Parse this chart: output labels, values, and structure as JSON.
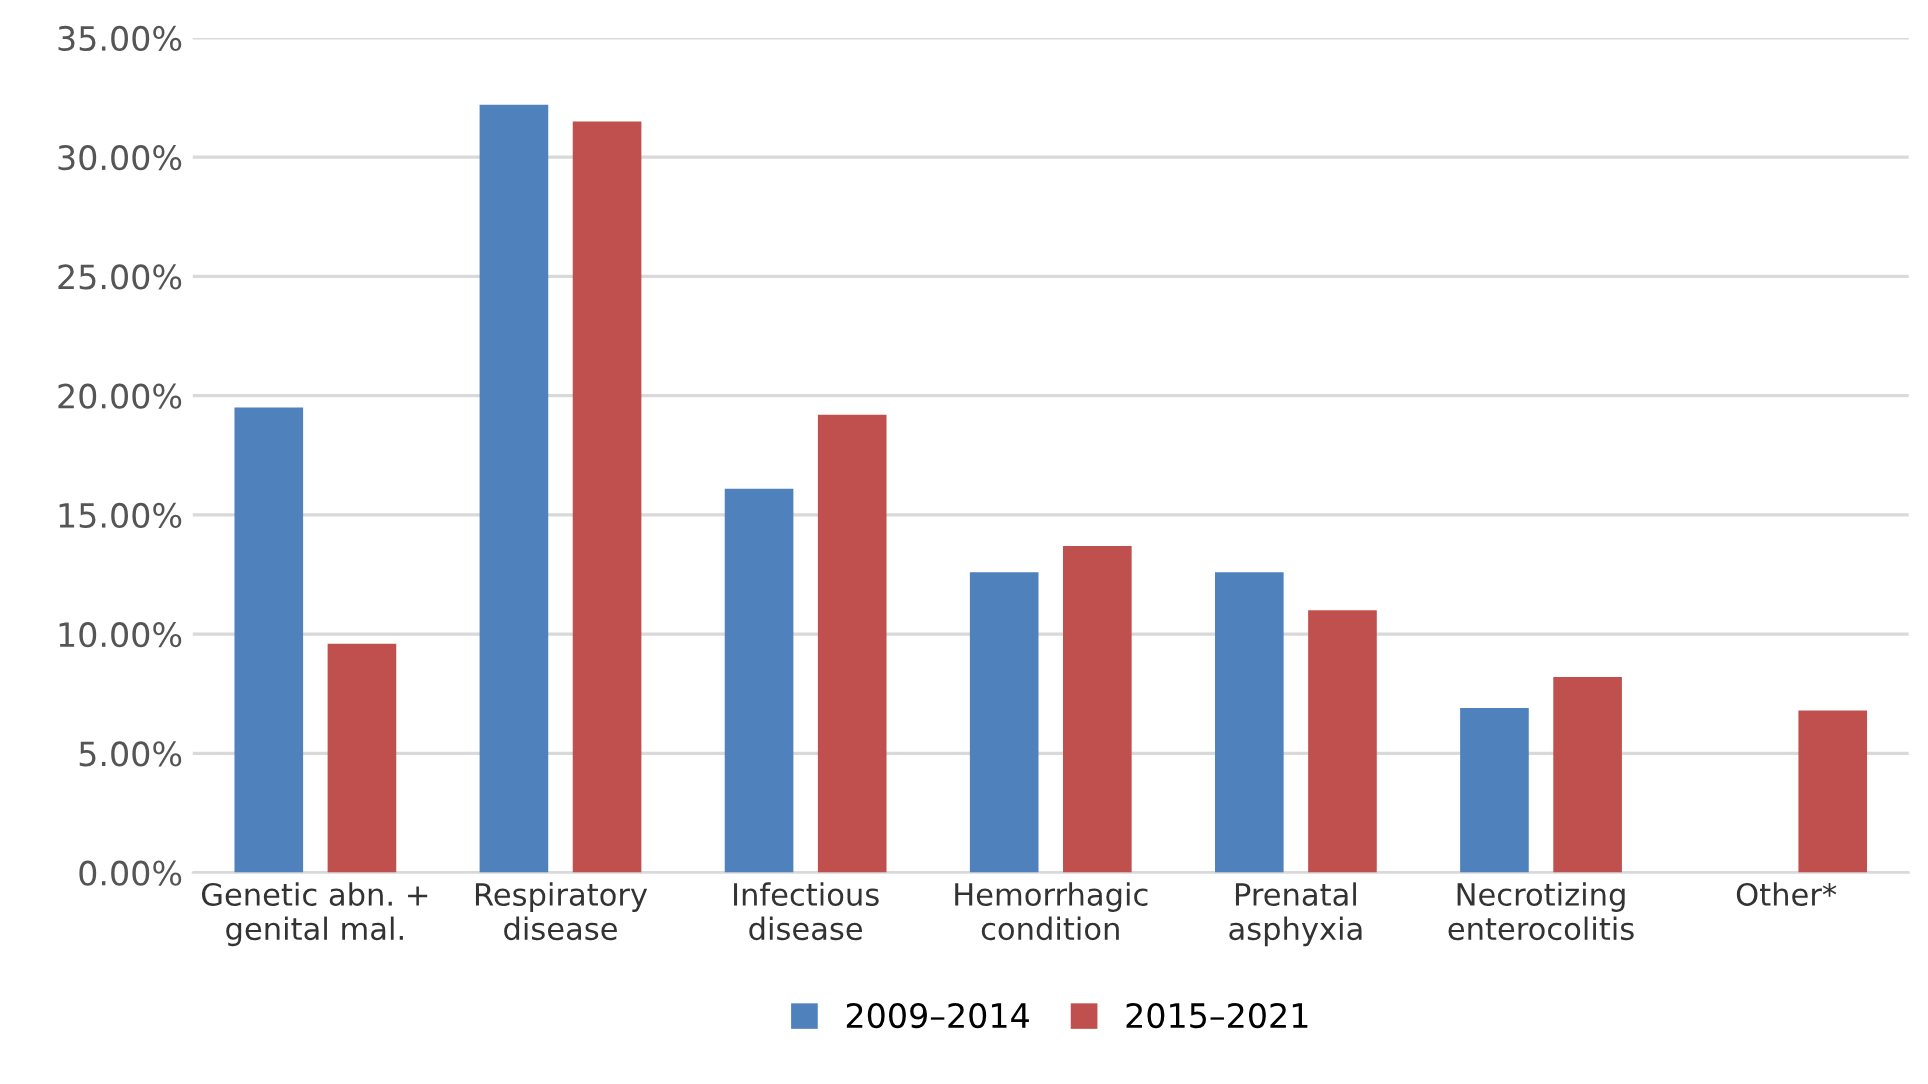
{
  "chart_data": {
    "type": "bar",
    "categories": [
      "Genetic abn. +\ngenital mal.",
      "Respiratory\ndisease",
      "Infectious\ndisease",
      "Hemorrhagic\ncondition",
      "Prenatal\nasphyxia",
      "Necrotizing\nenterocolitis",
      "Other*"
    ],
    "series": [
      {
        "name": "2009–2014",
        "color": "#4f81bd",
        "values": [
          19.5,
          32.2,
          16.1,
          12.6,
          12.6,
          6.9,
          null
        ]
      },
      {
        "name": "2015–2021",
        "color": "#c0504d",
        "values": [
          9.6,
          31.5,
          19.2,
          13.7,
          11.0,
          8.2,
          6.8
        ]
      }
    ],
    "ylim": [
      0,
      35
    ],
    "yticks": [
      {
        "value": 0,
        "label": "0.00%"
      },
      {
        "value": 5,
        "label": "5.00%"
      },
      {
        "value": 10,
        "label": "10.00%"
      },
      {
        "value": 15,
        "label": "15.00%"
      },
      {
        "value": 20,
        "label": "20.00%"
      },
      {
        "value": 25,
        "label": "25.00%"
      },
      {
        "value": 30,
        "label": "30.00%"
      },
      {
        "value": 35,
        "label": "35.00%"
      }
    ],
    "grid": "y",
    "legend": "bottom"
  }
}
